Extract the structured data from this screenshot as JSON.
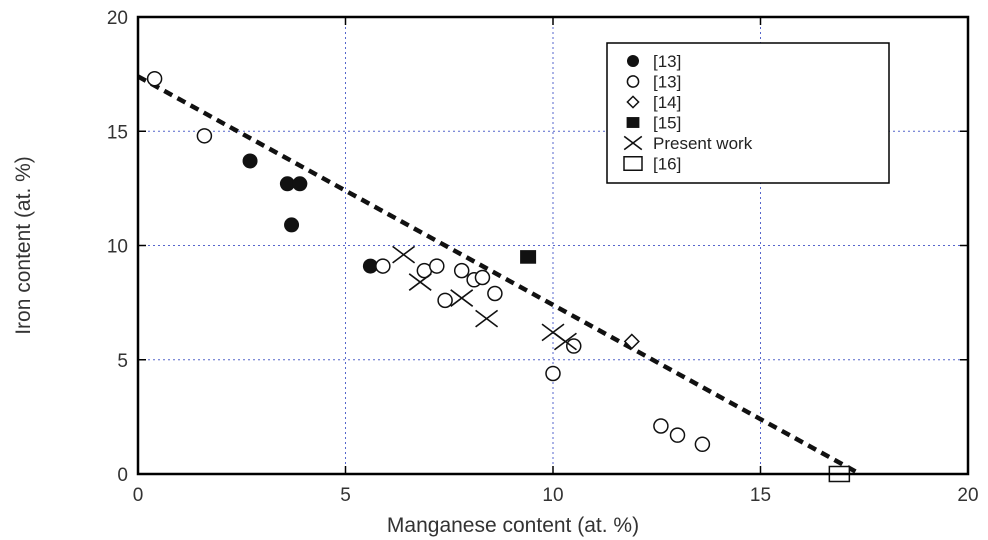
{
  "chart_data": {
    "type": "scatter",
    "title": "",
    "xlabel": "Manganese content (at. %)",
    "ylabel": "Iron content (at. %)",
    "xlim": [
      0,
      20
    ],
    "ylim": [
      0,
      20
    ],
    "xticks": [
      "0",
      "5",
      "10",
      "15",
      "20"
    ],
    "yticks": [
      "0",
      "5",
      "10",
      "15",
      "20"
    ],
    "grid": true,
    "legend_position": "top-right",
    "series": [
      {
        "name": "[13]",
        "marker": "filled-circle",
        "points": [
          [
            2.7,
            13.7
          ],
          [
            3.6,
            12.7
          ],
          [
            3.9,
            12.7
          ],
          [
            3.7,
            10.9
          ],
          [
            5.6,
            9.1
          ]
        ]
      },
      {
        "name": "[13]",
        "marker": "open-circle",
        "points": [
          [
            0.4,
            17.3
          ],
          [
            1.6,
            14.8
          ],
          [
            5.9,
            9.1
          ],
          [
            6.9,
            8.9
          ],
          [
            7.2,
            9.1
          ],
          [
            7.4,
            7.6
          ],
          [
            7.8,
            8.9
          ],
          [
            8.1,
            8.5
          ],
          [
            8.3,
            8.6
          ],
          [
            8.6,
            7.9
          ],
          [
            10.0,
            4.4
          ],
          [
            10.5,
            5.6
          ],
          [
            12.6,
            2.1
          ],
          [
            13.0,
            1.7
          ],
          [
            13.6,
            1.3
          ]
        ]
      },
      {
        "name": "[14]",
        "marker": "open-diamond",
        "points": [
          [
            11.9,
            5.8
          ]
        ]
      },
      {
        "name": "[15]",
        "marker": "filled-square",
        "points": [
          [
            9.4,
            9.5
          ]
        ]
      },
      {
        "name": "Present work",
        "marker": "cross",
        "points": [
          [
            6.4,
            9.6
          ],
          [
            6.8,
            8.4
          ],
          [
            7.8,
            7.7
          ],
          [
            8.4,
            6.8
          ],
          [
            10.0,
            6.2
          ],
          [
            10.3,
            5.8
          ]
        ]
      },
      {
        "name": "[16]",
        "marker": "open-square",
        "points": [
          [
            16.9,
            0.0
          ]
        ]
      }
    ],
    "fit_line": {
      "style": "dashed",
      "points": [
        [
          0,
          17.4
        ],
        [
          17.4,
          0
        ]
      ]
    }
  },
  "colors": {
    "grid": "#5566cc",
    "marker": "#111111",
    "frame": "#000000"
  }
}
